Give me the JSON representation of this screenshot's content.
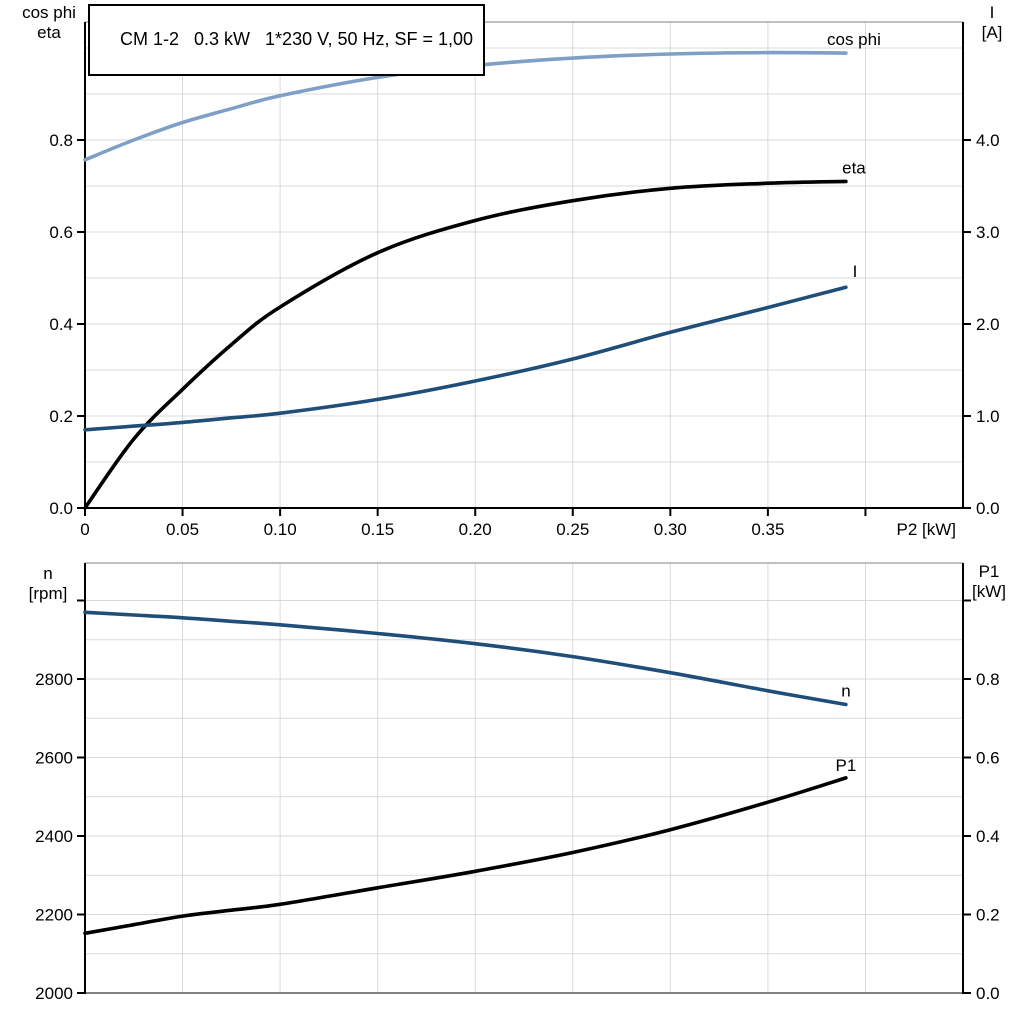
{
  "title": "CM 1-2   0.3 kW   1*230 V, 50 Hz, SF = 1,00",
  "colors": {
    "curve_black": "#000000",
    "curve_dark_blue": "#1F4E79",
    "curve_light_blue": "#7F9FC6",
    "grid": "#D9D9D9",
    "axis": "#000000",
    "frame_gray": "#808080",
    "background": "#FFFFFF"
  },
  "chart_data": [
    {
      "type": "line",
      "title": "CM 1-2   0.3 kW   1*230 V, 50 Hz, SF = 1,00",
      "x_axis_label": "P2 [kW]",
      "left_axis_title_lines": [
        "cos phi",
        "eta"
      ],
      "right_axis_title_lines": [
        "I",
        "[A]"
      ],
      "x_range": [
        0,
        0.45
      ],
      "left_range": [
        0,
        1.0565
      ],
      "right_range": [
        0,
        5.283
      ],
      "grid_x_step": 0.05,
      "grid_y_step": 0.1,
      "grid": true,
      "x_ticks": [
        {
          "v": 0,
          "label": "0"
        },
        {
          "v": 0.05,
          "label": "0.05"
        },
        {
          "v": 0.1,
          "label": "0.10"
        },
        {
          "v": 0.15,
          "label": "0.15"
        },
        {
          "v": 0.2,
          "label": "0.20"
        },
        {
          "v": 0.25,
          "label": "0.25"
        },
        {
          "v": 0.3,
          "label": "0.30"
        },
        {
          "v": 0.35,
          "label": "0.35"
        },
        {
          "v": 0.4,
          "label": ""
        }
      ],
      "left_ticks": [
        {
          "v": 0.0,
          "label": "0.0"
        },
        {
          "v": 0.2,
          "label": "0.2"
        },
        {
          "v": 0.4,
          "label": "0.4"
        },
        {
          "v": 0.6,
          "label": "0.6"
        },
        {
          "v": 0.8,
          "label": "0.8"
        }
      ],
      "right_ticks": [
        {
          "v": 0.0,
          "label": "0.0"
        },
        {
          "v": 1.0,
          "label": "1.0"
        },
        {
          "v": 2.0,
          "label": "2.0"
        },
        {
          "v": 3.0,
          "label": "3.0"
        },
        {
          "v": 4.0,
          "label": "4.0"
        }
      ],
      "x": [
        0,
        0.025,
        0.05,
        0.075,
        0.1,
        0.15,
        0.2,
        0.25,
        0.3,
        0.35,
        0.39
      ],
      "series": [
        {
          "name": "cos phi",
          "axis": "left",
          "color_key": "curve_light_blue",
          "values": [
            0.757,
            0.8,
            0.838,
            0.868,
            0.896,
            0.936,
            0.962,
            0.978,
            0.987,
            0.99,
            0.989
          ]
        },
        {
          "name": "eta",
          "axis": "left",
          "color_key": "curve_black",
          "values": [
            0.0,
            0.15,
            0.258,
            0.355,
            0.437,
            0.555,
            0.625,
            0.668,
            0.695,
            0.706,
            0.71
          ]
        },
        {
          "name": "I",
          "axis": "right",
          "color_key": "curve_dark_blue",
          "values": [
            0.85,
            0.89,
            0.93,
            0.98,
            1.03,
            1.18,
            1.38,
            1.62,
            1.91,
            2.18,
            2.4
          ]
        }
      ]
    },
    {
      "type": "line",
      "title": "",
      "x_axis_label": "",
      "left_axis_title_lines": [
        "n",
        "[rpm]"
      ],
      "right_axis_title_lines": [
        "P1",
        "[kW]"
      ],
      "x_range": [
        0,
        0.45
      ],
      "left_range": [
        2000,
        3095.5
      ],
      "right_range": [
        0,
        1.0955
      ],
      "grid_x_step": 0.05,
      "grid_y_step": 100,
      "grid": true,
      "x_ticks": [],
      "left_ticks": [
        {
          "v": 2000,
          "label": "2000"
        },
        {
          "v": 2200,
          "label": "2200"
        },
        {
          "v": 2400,
          "label": "2400"
        },
        {
          "v": 2600,
          "label": "2600"
        },
        {
          "v": 2800,
          "label": "2800"
        },
        {
          "v": 3000,
          "label": ""
        }
      ],
      "right_ticks": [
        {
          "v": 0.0,
          "label": "0.0"
        },
        {
          "v": 0.2,
          "label": "0.2"
        },
        {
          "v": 0.4,
          "label": "0.4"
        },
        {
          "v": 0.6,
          "label": "0.6"
        },
        {
          "v": 0.8,
          "label": "0.8"
        },
        {
          "v": 1.0,
          "label": ""
        }
      ],
      "x": [
        0,
        0.025,
        0.05,
        0.075,
        0.1,
        0.15,
        0.2,
        0.25,
        0.3,
        0.35,
        0.39
      ],
      "series": [
        {
          "name": "n",
          "axis": "left",
          "color_key": "curve_dark_blue",
          "values": [
            2970,
            2963,
            2956,
            2947,
            2938,
            2916,
            2890,
            2857,
            2816,
            2770,
            2735
          ]
        },
        {
          "name": "P1",
          "axis": "right",
          "color_key": "curve_black",
          "values": [
            0.152,
            0.174,
            0.196,
            0.211,
            0.226,
            0.268,
            0.31,
            0.358,
            0.416,
            0.486,
            0.548
          ]
        }
      ]
    }
  ]
}
